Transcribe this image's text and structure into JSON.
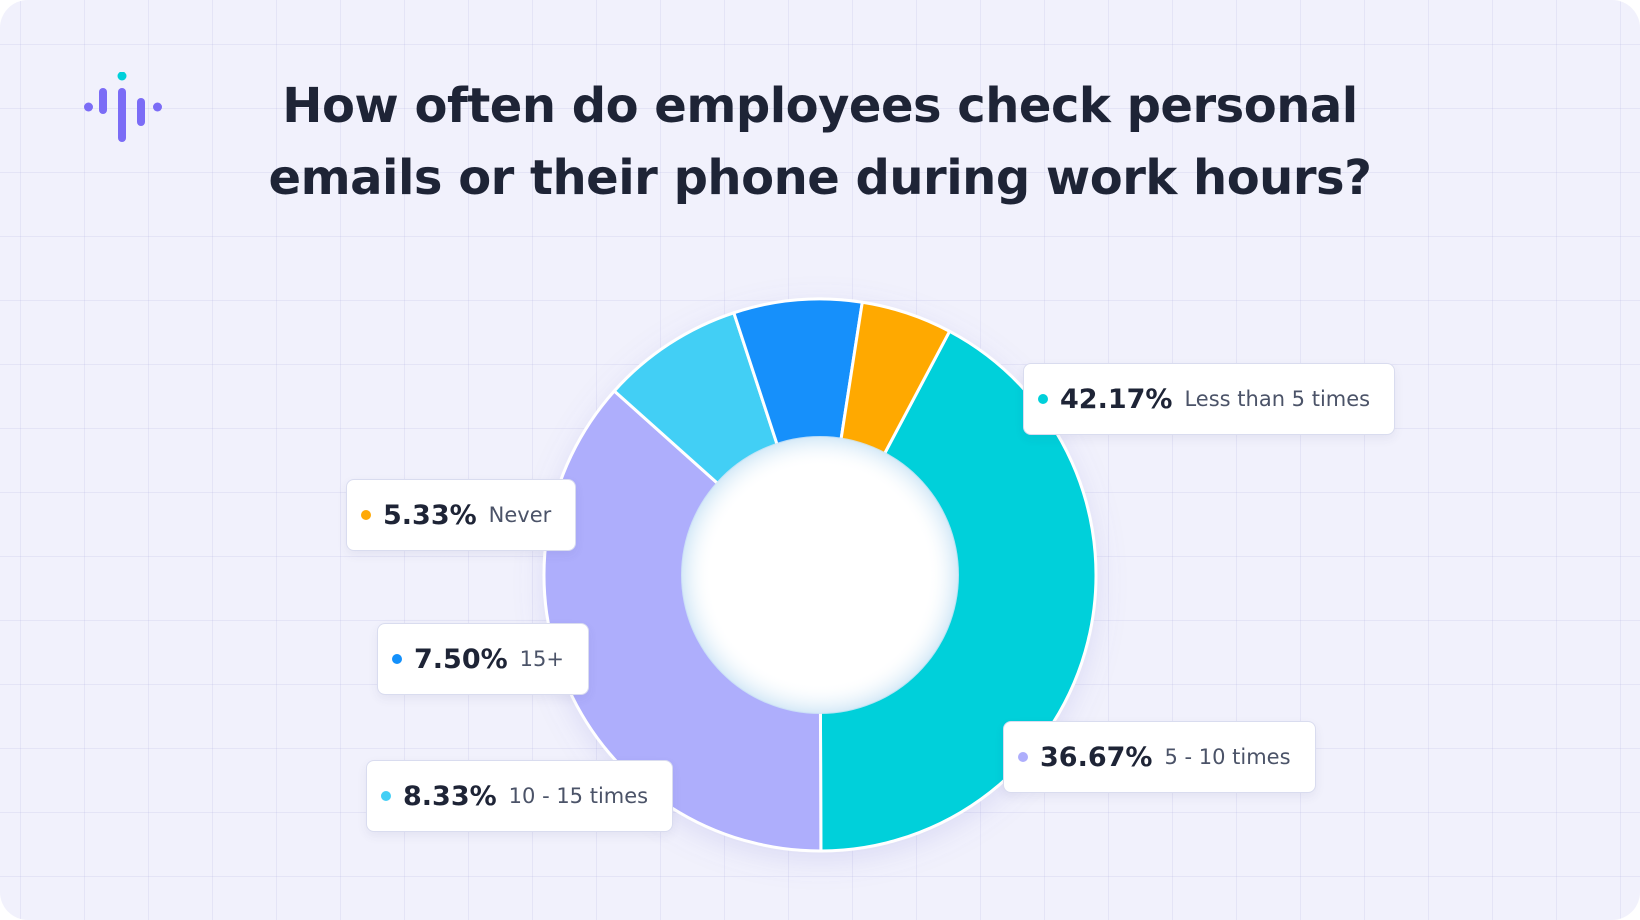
{
  "title_lines": [
    "How often do employees check personal",
    "emails or their phone during work hours?"
  ],
  "chart_data": {
    "type": "pie",
    "variant": "donut",
    "start_angle_deg": -62,
    "direction": "clockwise",
    "slices": [
      {
        "label": "Less than 5 times",
        "value": 42.17,
        "value_label": "42.17%",
        "color": "#00d0da"
      },
      {
        "label": "5 - 10 times",
        "value": 36.67,
        "value_label": "36.67%",
        "color": "#aeaefc"
      },
      {
        "label": "10 - 15 times",
        "value": 8.33,
        "value_label": "8.33%",
        "color": "#43cff5"
      },
      {
        "label": "15+",
        "value": 7.5,
        "value_label": "7.50%",
        "color": "#1390fb"
      },
      {
        "label": "Never",
        "value": 5.33,
        "value_label": "5.33%",
        "color": "#ffa905"
      }
    ]
  },
  "colors": {
    "background": "#f1f1fc",
    "title": "#1e2436",
    "logo_primary": "#7b6cf6",
    "logo_accent": "#00d0da"
  },
  "logo": {
    "icon": "voice-wave-logo-icon"
  }
}
